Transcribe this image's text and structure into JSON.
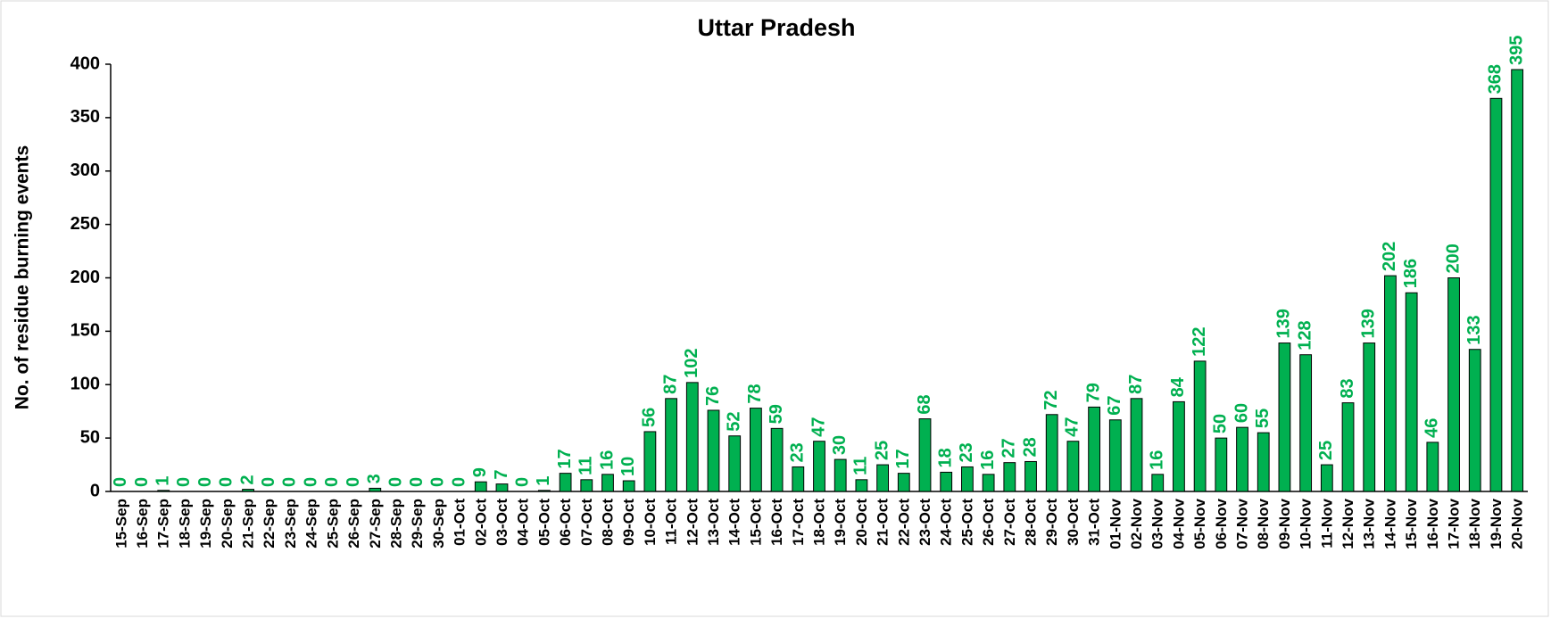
{
  "chart_data": {
    "type": "bar",
    "title": "Uttar Pradesh",
    "y_label": "No. of residue burning events",
    "categories": [
      "15-Sep",
      "16-Sep",
      "17-Sep",
      "18-Sep",
      "19-Sep",
      "20-Sep",
      "21-Sep",
      "22-Sep",
      "23-Sep",
      "24-Sep",
      "25-Sep",
      "26-Sep",
      "27-Sep",
      "28-Sep",
      "29-Sep",
      "30-Sep",
      "01-Oct",
      "02-Oct",
      "03-Oct",
      "04-Oct",
      "05-Oct",
      "06-Oct",
      "07-Oct",
      "08-Oct",
      "09-Oct",
      "10-Oct",
      "11-Oct",
      "12-Oct",
      "13-Oct",
      "14-Oct",
      "15-Oct",
      "16-Oct",
      "17-Oct",
      "18-Oct",
      "19-Oct",
      "20-Oct",
      "21-Oct",
      "22-Oct",
      "23-Oct",
      "24-Oct",
      "25-Oct",
      "26-Oct",
      "27-Oct",
      "28-Oct",
      "29-Oct",
      "30-Oct",
      "31-Oct",
      "01-Nov",
      "02-Nov",
      "03-Nov",
      "04-Nov",
      "05-Nov",
      "06-Nov",
      "07-Nov",
      "08-Nov",
      "09-Nov",
      "10-Nov",
      "11-Nov",
      "12-Nov",
      "13-Nov",
      "14-Nov",
      "15-Nov",
      "16-Nov",
      "17-Nov",
      "18-Nov",
      "19-Nov",
      "20-Nov"
    ],
    "values": [
      0,
      0,
      1,
      0,
      0,
      0,
      2,
      0,
      0,
      0,
      0,
      0,
      3,
      0,
      0,
      0,
      0,
      9,
      7,
      0,
      1,
      17,
      11,
      16,
      10,
      56,
      87,
      102,
      76,
      52,
      78,
      59,
      23,
      47,
      30,
      11,
      25,
      17,
      68,
      18,
      23,
      16,
      27,
      28,
      72,
      47,
      79,
      67,
      87,
      16,
      84,
      122,
      50,
      60,
      55,
      139,
      128,
      25,
      83,
      139,
      202,
      186,
      46,
      200,
      133,
      368,
      395
    ],
    "color": "#00b050",
    "label_color": "#00b050",
    "ylim": [
      0,
      400
    ],
    "yticks": [
      0,
      50,
      100,
      150,
      200,
      250,
      300,
      350,
      400
    ],
    "grid": false
  }
}
